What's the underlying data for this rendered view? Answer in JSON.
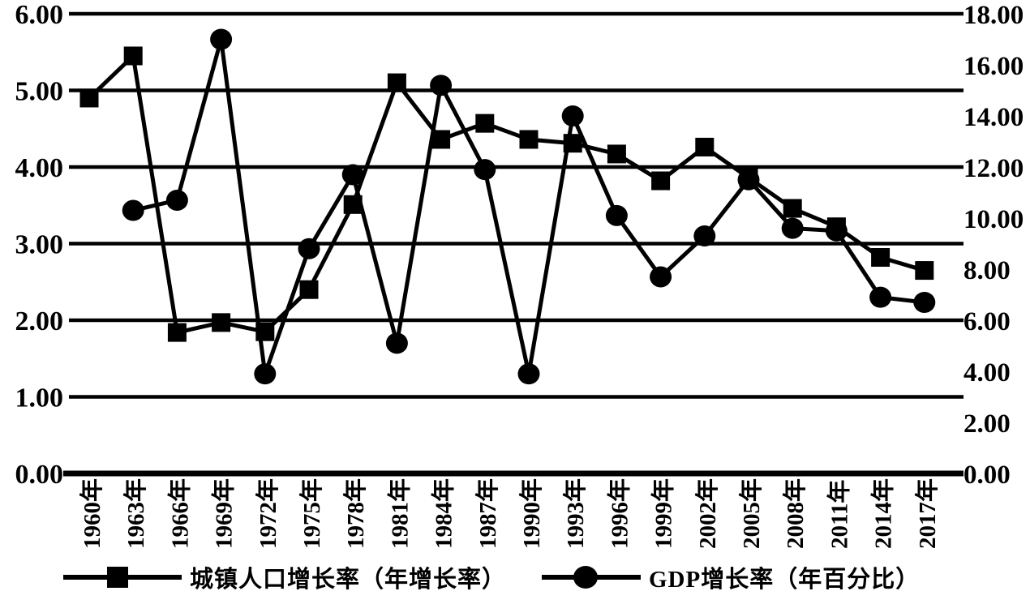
{
  "chart_data": {
    "type": "line",
    "title": "",
    "xlabel": "",
    "ylabel": "",
    "grid": "horizontal-solid-black",
    "background": "#ffffff",
    "line_color": "#000000",
    "legend_position": "bottom",
    "categories": [
      "1960年",
      "1963年",
      "1966年",
      "1969年",
      "1972年",
      "1975年",
      "1978年",
      "1981年",
      "1984年",
      "1987年",
      "1990年",
      "1993年",
      "1996年",
      "1999年",
      "2002年",
      "2005年",
      "2008年",
      "2011年",
      "2014年",
      "2017年"
    ],
    "left_axis": {
      "min": 0,
      "max": 6,
      "ticks": [
        "0.00",
        "1.00",
        "2.00",
        "3.00",
        "4.00",
        "5.00",
        "6.00"
      ]
    },
    "right_axis": {
      "min": 0,
      "max": 18,
      "ticks": [
        "0.00",
        "2.00",
        "4.00",
        "6.00",
        "8.00",
        "10.00",
        "12.00",
        "14.00",
        "16.00",
        "18.00"
      ]
    },
    "series": [
      {
        "name": "城镇人口增长率（年增长率）",
        "axis": "left",
        "marker": "square",
        "values": [
          4.9,
          5.45,
          1.84,
          1.97,
          1.85,
          2.4,
          3.51,
          5.1,
          4.36,
          4.57,
          4.36,
          4.31,
          4.17,
          3.82,
          4.26,
          3.86,
          3.46,
          3.22,
          2.82,
          2.65
        ]
      },
      {
        "name": "GDP增长率（年百分比）",
        "axis": "right",
        "marker": "circle",
        "values": [
          null,
          10.3,
          10.7,
          17.0,
          3.9,
          8.8,
          11.7,
          5.1,
          15.2,
          11.9,
          3.9,
          14.0,
          10.1,
          7.7,
          9.3,
          11.5,
          9.6,
          9.5,
          6.9,
          6.7
        ]
      }
    ]
  },
  "legend": {
    "urban_label": "城镇人口增长率（年增长率）",
    "gdp_label": "GDP增长率（年百分比）"
  }
}
